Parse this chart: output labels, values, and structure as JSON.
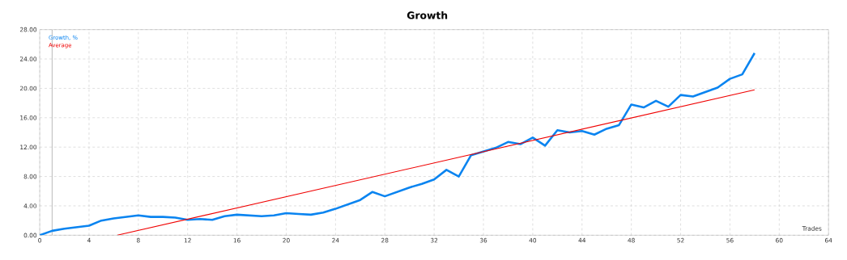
{
  "chart_data": {
    "type": "line",
    "title": "Growth",
    "xlabel": "Trades",
    "xlim": [
      0,
      64
    ],
    "xticks": [
      0,
      4,
      8,
      12,
      16,
      20,
      24,
      28,
      32,
      36,
      40,
      44,
      48,
      52,
      56,
      60,
      64
    ],
    "ylim": [
      0,
      28
    ],
    "yticks": [
      {
        "value": 0,
        "label": "0.00"
      },
      {
        "value": 4,
        "label": "4.00"
      },
      {
        "value": 8,
        "label": "8.00"
      },
      {
        "value": 12,
        "label": "12.00"
      },
      {
        "value": 16,
        "label": "16.00"
      },
      {
        "value": 20,
        "label": "20.00"
      },
      {
        "value": 24,
        "label": "24.00"
      },
      {
        "value": 28,
        "label": "28.00"
      }
    ],
    "grid": true,
    "legend": "top left",
    "marker": "none",
    "line_style": "solid",
    "ref_lines": [
      {
        "axis": "x",
        "value": 1,
        "color": "#a0a0a0"
      }
    ],
    "x": [
      0,
      1,
      2,
      3,
      4,
      5,
      6,
      7,
      8,
      9,
      10,
      11,
      12,
      13,
      14,
      15,
      16,
      17,
      18,
      19,
      20,
      21,
      22,
      23,
      24,
      25,
      26,
      27,
      28,
      29,
      30,
      31,
      32,
      33,
      34,
      35,
      36,
      37,
      38,
      39,
      40,
      41,
      42,
      43,
      44,
      45,
      46,
      47,
      48,
      49,
      50,
      51,
      52,
      53,
      54,
      55,
      56,
      57,
      58
    ],
    "series": [
      {
        "name": "Growth, %",
        "color": "#0a84f0",
        "values": [
          0,
          0.6,
          0.9,
          1.1,
          1.3,
          2.0,
          2.3,
          2.5,
          2.7,
          2.5,
          2.5,
          2.4,
          2.1,
          2.2,
          2.1,
          2.6,
          2.8,
          2.7,
          2.6,
          2.7,
          3.0,
          2.9,
          2.8,
          3.1,
          3.6,
          4.2,
          4.8,
          5.9,
          5.3,
          5.9,
          6.5,
          7.0,
          7.6,
          8.9,
          8.0,
          10.9,
          11.4,
          11.9,
          12.7,
          12.4,
          13.3,
          12.2,
          14.3,
          14.0,
          14.2,
          13.7,
          14.5,
          15.0,
          17.8,
          17.4,
          18.3,
          17.5,
          19.1,
          18.9,
          19.5,
          20.1,
          21.3,
          21.9,
          24.8
        ]
      },
      {
        "name": "Average",
        "color": "#f00000",
        "x": [
          6.3,
          58
        ],
        "values": [
          0,
          19.8
        ]
      }
    ]
  }
}
